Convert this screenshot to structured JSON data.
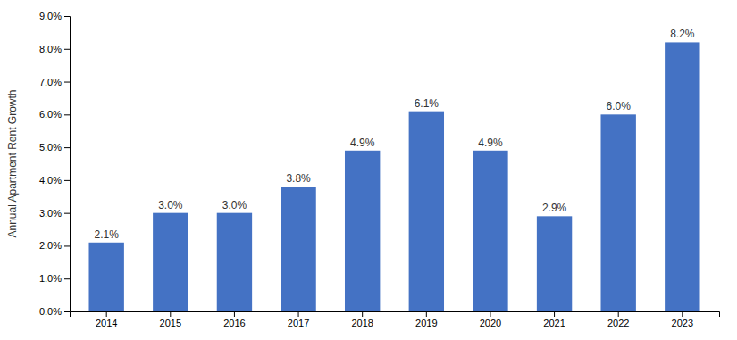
{
  "chart_data": {
    "type": "bar",
    "ylabel": "Annual Apartment Rent Growth",
    "categories": [
      "2014",
      "2015",
      "2016",
      "2017",
      "2018",
      "2019",
      "2020",
      "2021",
      "2022",
      "2023"
    ],
    "values": [
      2.1,
      3.0,
      3.0,
      3.8,
      4.9,
      6.1,
      4.9,
      2.9,
      6.0,
      8.2
    ],
    "value_labels": [
      "2.1%",
      "3.0%",
      "3.0%",
      "3.8%",
      "4.9%",
      "6.1%",
      "4.9%",
      "2.9%",
      "6.0%",
      "8.2%"
    ],
    "color": "#4472C4",
    "ylim": [
      0,
      9.0
    ],
    "yticks": [
      {
        "value": 0.0,
        "label": "0.0%"
      },
      {
        "value": 1.0,
        "label": "1.0%"
      },
      {
        "value": 2.0,
        "label": "2.0%"
      },
      {
        "value": 3.0,
        "label": "3.0%"
      },
      {
        "value": 4.0,
        "label": "4.0%"
      },
      {
        "value": 5.0,
        "label": "5.0%"
      },
      {
        "value": 6.0,
        "label": "6.0%"
      },
      {
        "value": 7.0,
        "label": "7.0%"
      },
      {
        "value": 8.0,
        "label": "8.0%"
      },
      {
        "value": 9.0,
        "label": "9.0%"
      }
    ],
    "grid": false,
    "data_labels": true
  }
}
